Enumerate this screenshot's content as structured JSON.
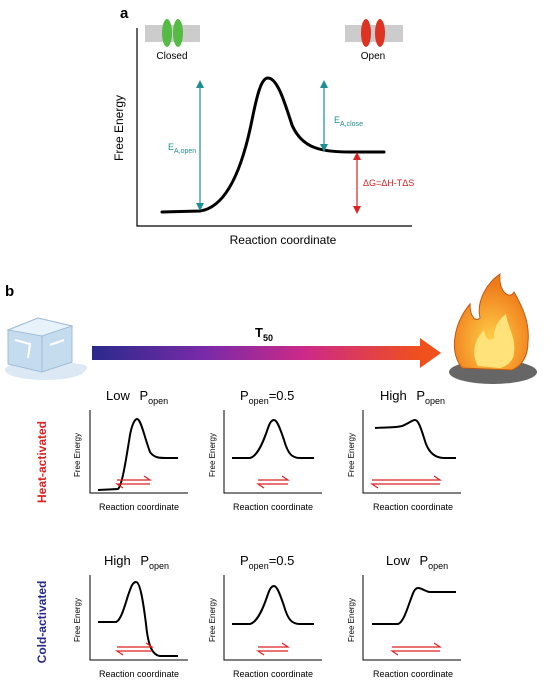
{
  "panel_a": {
    "label": "a",
    "ylabel": "Free Energy",
    "xlabel": "Reaction coordinate",
    "closed_label": "Closed",
    "open_label": "Open",
    "ea_open_main": "E",
    "ea_open_sub": "A,open",
    "ea_close_main": "E",
    "ea_close_sub": "A,close",
    "delta_g": "ΔG=ΔH-TΔS",
    "colors": {
      "closed": "#55bb44",
      "open": "#dd3322",
      "teal": "#1f8f8f",
      "red": "#dd2222"
    }
  },
  "panel_b": {
    "label": "b",
    "t50_main": "T",
    "t50_sub": "50",
    "heat_label": "Heat-activated",
    "cold_label": "Cold-activated",
    "heat_color": "#dd2222",
    "cold_color": "#2a2a8c",
    "gradient": [
      "#2a2a8c",
      "#8a2aa8",
      "#cc2a88",
      "#ee4a20"
    ],
    "ylabel": "Free Energy",
    "xlabel": "Reaction coordinate",
    "heat_titles": [
      {
        "pre": "Low ",
        "p": "P",
        "sub": "open",
        "post": ""
      },
      {
        "pre": "",
        "p": "P",
        "sub": "open",
        "post": "=0.5"
      },
      {
        "pre": "High ",
        "p": "P",
        "sub": "open",
        "post": ""
      }
    ],
    "cold_titles": [
      {
        "pre": "High ",
        "p": "P",
        "sub": "open",
        "post": ""
      },
      {
        "pre": "",
        "p": "P",
        "sub": "open",
        "post": "=0.5"
      },
      {
        "pre": "Low ",
        "p": "P",
        "sub": "open",
        "post": ""
      }
    ]
  }
}
